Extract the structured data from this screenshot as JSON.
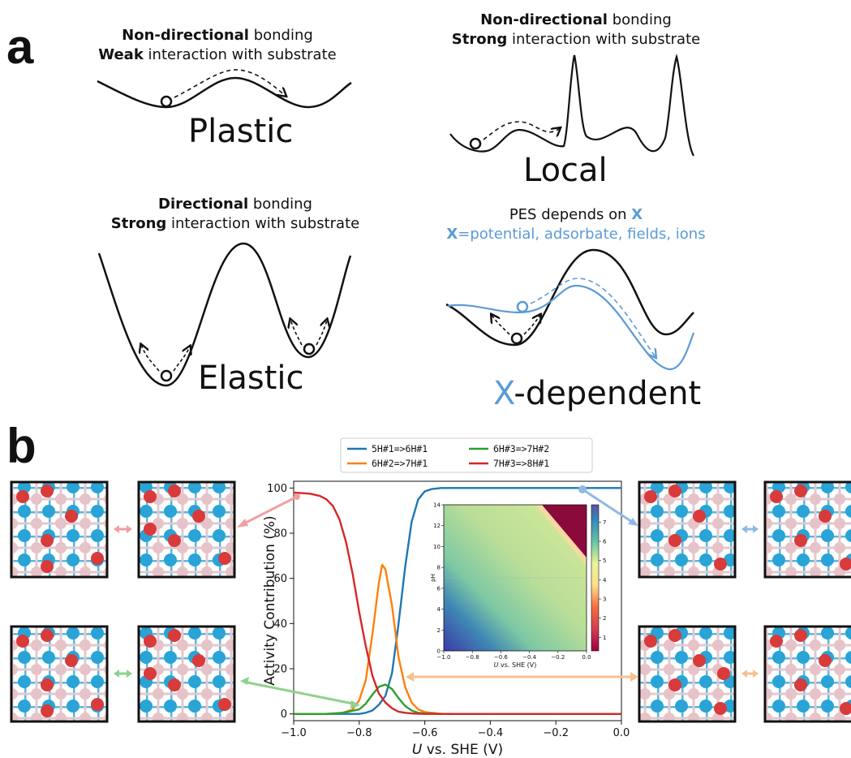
{
  "panel_a": {
    "letter": "a",
    "plastic": {
      "line1_bold": "Non-directional",
      "line1_rest": " bonding",
      "line2_bold": "Weak",
      "line2_rest": " interaction with substrate",
      "label": "Plastic"
    },
    "local": {
      "line1_bold": "Non-directional",
      "line1_rest": " bonding",
      "line2_bold": "Strong",
      "line2_rest": " interaction with substrate",
      "label": "Local"
    },
    "elastic": {
      "line1_bold": "Directional",
      "line1_rest": " bonding",
      "line2_bold": "Strong",
      "line2_rest": " interaction with substrate",
      "label": "Elastic"
    },
    "xdep": {
      "line1_pre": "PES depends on ",
      "line1_x": "X",
      "line2_x": "X",
      "line2_rest": "=potential, adsorbate, fields, ions",
      "label_x": "X",
      "label_rest": "-dependent"
    }
  },
  "panel_b": {
    "letter": "b"
  },
  "colors": {
    "blue": "#1f77b4",
    "orange": "#ff7f0e",
    "green": "#2ca02c",
    "red": "#d62728",
    "x_blue": "#5b9bd5"
  },
  "chart_data": [
    {
      "type": "line",
      "xlabel_italic": "U",
      "xlabel": " vs. SHE (V)",
      "ylabel": "Activity Contribution (%)",
      "xlim": [
        -1.0,
        0.0
      ],
      "ylim": [
        -3,
        103
      ],
      "xticks": [
        "−1.0",
        "−0.8",
        "−0.6",
        "−0.4",
        "−0.2",
        "0.0"
      ],
      "yticks": [
        "0",
        "20",
        "40",
        "60",
        "80",
        "100"
      ],
      "legend_position": "top (outside, above axes)",
      "series": [
        {
          "name": "5H#1=>6H#1",
          "color": "#1f77b4",
          "x": [
            -1.0,
            -0.8,
            -0.78,
            -0.76,
            -0.74,
            -0.72,
            -0.7,
            -0.68,
            -0.66,
            -0.64,
            -0.62,
            -0.6,
            -0.58,
            -0.55,
            -0.5,
            -0.4,
            -0.2,
            0.0
          ],
          "y": [
            0,
            0,
            0.5,
            1.5,
            4,
            8,
            18,
            40,
            65,
            85,
            95,
            98.5,
            99.5,
            100,
            100,
            100,
            100,
            100
          ]
        },
        {
          "name": "6H#2=>7H#1",
          "color": "#ff7f0e",
          "x": [
            -1.0,
            -0.9,
            -0.85,
            -0.82,
            -0.8,
            -0.78,
            -0.76,
            -0.74,
            -0.73,
            -0.72,
            -0.7,
            -0.68,
            -0.66,
            -0.64,
            -0.62,
            -0.6,
            -0.55,
            -0.5,
            -0.4,
            0.0
          ],
          "y": [
            0,
            0,
            0.5,
            2,
            6,
            15,
            35,
            58,
            66,
            64,
            48,
            25,
            12,
            5,
            2,
            0.8,
            0.1,
            0,
            0,
            0
          ]
        },
        {
          "name": "6H#3=>7H#2",
          "color": "#2ca02c",
          "x": [
            -1.0,
            -0.9,
            -0.85,
            -0.8,
            -0.78,
            -0.76,
            -0.74,
            -0.72,
            -0.7,
            -0.68,
            -0.66,
            -0.64,
            -0.62,
            -0.6,
            -0.55,
            -0.5,
            0.0
          ],
          "y": [
            0,
            0,
            0.5,
            2,
            4.5,
            8.5,
            12,
            13,
            11,
            7,
            3.5,
            1.5,
            0.5,
            0.2,
            0,
            0,
            0
          ]
        },
        {
          "name": "7H#3=>8H#1",
          "color": "#d62728",
          "x": [
            -1.0,
            -0.95,
            -0.92,
            -0.9,
            -0.88,
            -0.86,
            -0.84,
            -0.82,
            -0.8,
            -0.78,
            -0.76,
            -0.74,
            -0.72,
            -0.7,
            -0.68,
            -0.66,
            -0.64,
            -0.62,
            -0.6,
            -0.55,
            -0.5,
            0.0
          ],
          "y": [
            98,
            97.5,
            96.5,
            95,
            92,
            86,
            76,
            62,
            45,
            30,
            17,
            9,
            5,
            2.5,
            1,
            0.5,
            0.2,
            0.1,
            0,
            0,
            0,
            0
          ]
        }
      ]
    },
    {
      "type": "heatmap",
      "xlabel_italic": "U",
      "xlabel": " vs. SHE (V)",
      "ylabel": "pH",
      "xlim": [
        -1.0,
        0.0
      ],
      "ylim": [
        0,
        14
      ],
      "xticks": [
        "−1.0",
        "−0.8",
        "−0.6",
        "−0.4",
        "−0.2",
        "0.0"
      ],
      "yticks": [
        "0",
        "2",
        "4",
        "6",
        "8",
        "10",
        "12",
        "14"
      ],
      "colorbar_ticks": [
        "1",
        "2",
        "3",
        "4",
        "5",
        "6",
        "7"
      ]
    }
  ]
}
